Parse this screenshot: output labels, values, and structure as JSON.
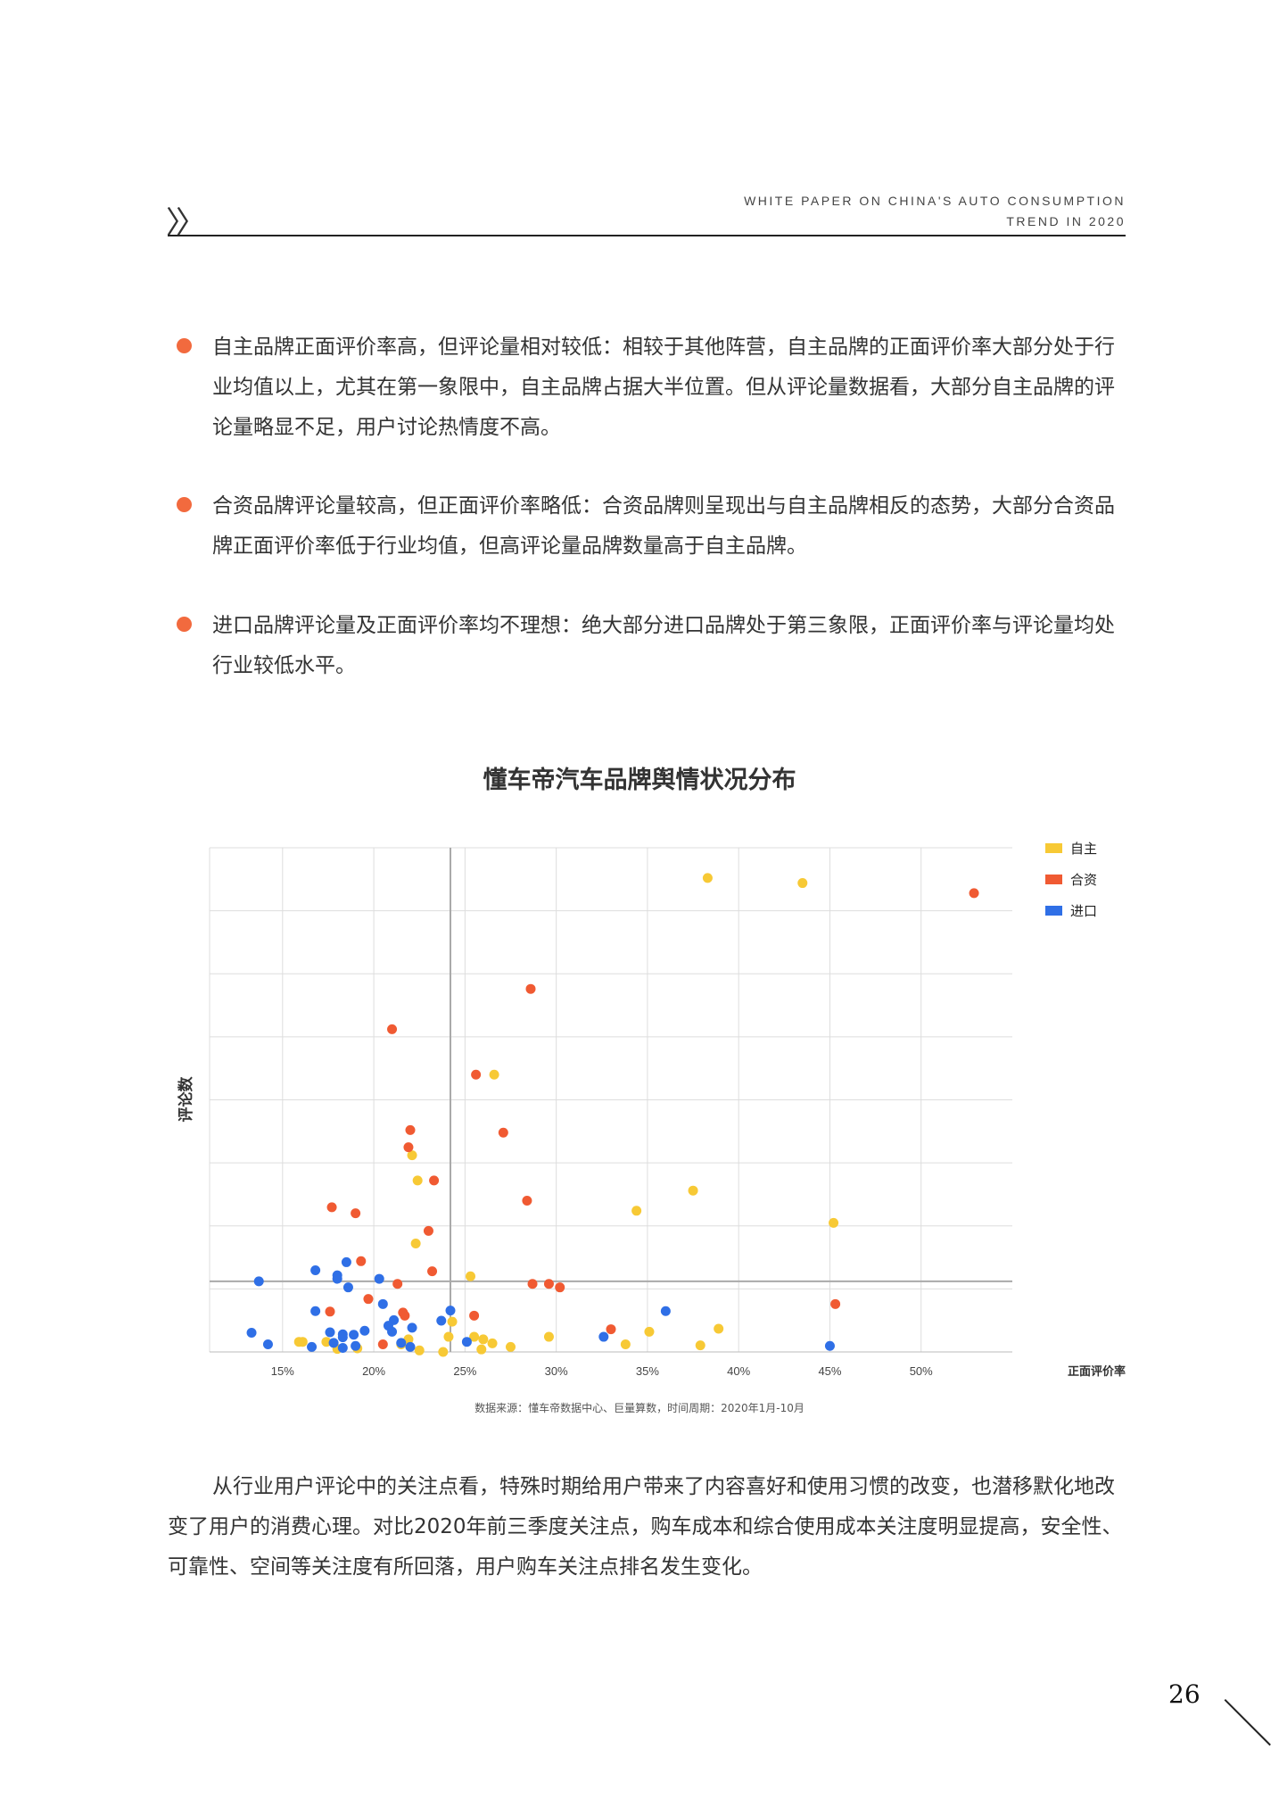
{
  "header": {
    "icon": "double-chevron-icon",
    "title_line1": "WHITE PAPER ON CHINA'S AUTO CONSUMPTION",
    "title_line2": "TREND IN 2020"
  },
  "bullets": [
    {
      "text": "自主品牌正面评价率高，但评论量相对较低：相较于其他阵营，自主品牌的正面评价率大部分处于行业均值以上，尤其在第一象限中，自主品牌占据大半位置。但从评论量数据看，大部分自主品牌的评论量略显不足，用户讨论热情度不高。"
    },
    {
      "text": "合资品牌评论量较高，但正面评价率略低：合资品牌则呈现出与自主品牌相反的态势，大部分合资品牌正面评价率低于行业均值，但高评论量品牌数量高于自主品牌。"
    },
    {
      "text": "进口品牌评论量及正面评价率均不理想：绝大部分进口品牌处于第三象限，正面评价率与评论量均处行业较低水平。"
    }
  ],
  "colors": {
    "bullet": "#f26a3e",
    "自主": "#f7c935",
    "合资": "#f05a32",
    "进口": "#2f6fe6"
  },
  "chart_data": {
    "type": "scatter",
    "title": "懂车帝汽车品牌舆情状况分布",
    "xlabel": "正面评价率",
    "ylabel": "评论数",
    "x_ticks": [
      "15%",
      "20%",
      "25%",
      "30%",
      "35%",
      "40%",
      "45%",
      "50%"
    ],
    "xlim": [
      11,
      55
    ],
    "ylim": [
      0,
      100
    ],
    "grid": true,
    "legend_position": "top-right",
    "average_lines": {
      "x": 24.2,
      "y": 14
    },
    "series": [
      {
        "name": "自主",
        "points": [
          [
            38.3,
            94
          ],
          [
            43.5,
            93
          ],
          [
            26.6,
            55
          ],
          [
            22.1,
            39
          ],
          [
            22.4,
            34
          ],
          [
            37.5,
            32
          ],
          [
            34.4,
            28
          ],
          [
            45.2,
            25.6
          ],
          [
            22.3,
            21.5
          ],
          [
            25.3,
            15
          ],
          [
            24.3,
            6
          ],
          [
            25.5,
            3
          ],
          [
            26,
            2.5
          ],
          [
            26.5,
            1.7
          ],
          [
            17.4,
            2
          ],
          [
            21.9,
            2.5
          ],
          [
            35.1,
            4
          ],
          [
            38.9,
            4.6
          ],
          [
            29.6,
            3
          ],
          [
            33.8,
            1.5
          ],
          [
            37.9,
            1.3
          ],
          [
            27.5,
            1
          ],
          [
            25.9,
            0.5
          ],
          [
            21.5,
            1.5
          ],
          [
            24.1,
            3
          ],
          [
            23.8,
            0
          ],
          [
            22.5,
            0.3
          ],
          [
            15.9,
            2
          ],
          [
            16.1,
            2
          ],
          [
            18,
            0.6
          ],
          [
            19.1,
            0.7
          ]
        ]
      },
      {
        "name": "合资",
        "points": [
          [
            52.9,
            91
          ],
          [
            28.6,
            72
          ],
          [
            21,
            64
          ],
          [
            25.6,
            55
          ],
          [
            22,
            44
          ],
          [
            27.1,
            43.5
          ],
          [
            21.9,
            40.6
          ],
          [
            23.3,
            34
          ],
          [
            28.4,
            30
          ],
          [
            17.7,
            28.7
          ],
          [
            19,
            27.5
          ],
          [
            23,
            24
          ],
          [
            19.3,
            18
          ],
          [
            23.2,
            16
          ],
          [
            21.3,
            13.5
          ],
          [
            28.7,
            13.5
          ],
          [
            29.6,
            13.5
          ],
          [
            30.2,
            12.8
          ],
          [
            19.7,
            10.5
          ],
          [
            17.6,
            8
          ],
          [
            21.6,
            7.8
          ],
          [
            25.5,
            7.2
          ],
          [
            45.3,
            9.5
          ],
          [
            33,
            4.5
          ],
          [
            21.7,
            7.2
          ],
          [
            20.5,
            1.5
          ]
        ]
      },
      {
        "name": "进口",
        "points": [
          [
            13.7,
            14
          ],
          [
            16.8,
            16.2
          ],
          [
            18.5,
            17.8
          ],
          [
            18,
            15.2
          ],
          [
            18,
            14.5
          ],
          [
            20.3,
            14.5
          ],
          [
            18.6,
            12.8
          ],
          [
            20.5,
            9.5
          ],
          [
            16.8,
            8.1
          ],
          [
            36,
            8.1
          ],
          [
            24.2,
            8.2
          ],
          [
            21.1,
            6.3
          ],
          [
            23.7,
            6.2
          ],
          [
            20.8,
            5.2
          ],
          [
            22.1,
            4.8
          ],
          [
            13.3,
            3.8
          ],
          [
            17.6,
            3.9
          ],
          [
            18.3,
            3.5
          ],
          [
            18.9,
            3.4
          ],
          [
            18.3,
            2.9
          ],
          [
            19.5,
            4.2
          ],
          [
            21,
            4
          ],
          [
            25.1,
            2
          ],
          [
            32.6,
            3
          ],
          [
            14.2,
            1.5
          ],
          [
            16.6,
            1
          ],
          [
            17.8,
            1.8
          ],
          [
            18.3,
            0.8
          ],
          [
            19,
            1.2
          ],
          [
            21.5,
            1.8
          ],
          [
            22,
            1
          ],
          [
            45,
            1.2
          ]
        ]
      }
    ]
  },
  "source": "数据来源：懂车帝数据中心、巨量算数，时间周期：2020年1月-10月",
  "paragraph": "从行业用户评论中的关注点看，特殊时期给用户带来了内容喜好和使用习惯的改变，也潜移默化地改变了用户的消费心理。对比2020年前三季度关注点，购车成本和综合使用成本关注度明显提高，安全性、可靠性、空间等关注度有所回落，用户购车关注点排名发生变化。",
  "page_number": "26"
}
